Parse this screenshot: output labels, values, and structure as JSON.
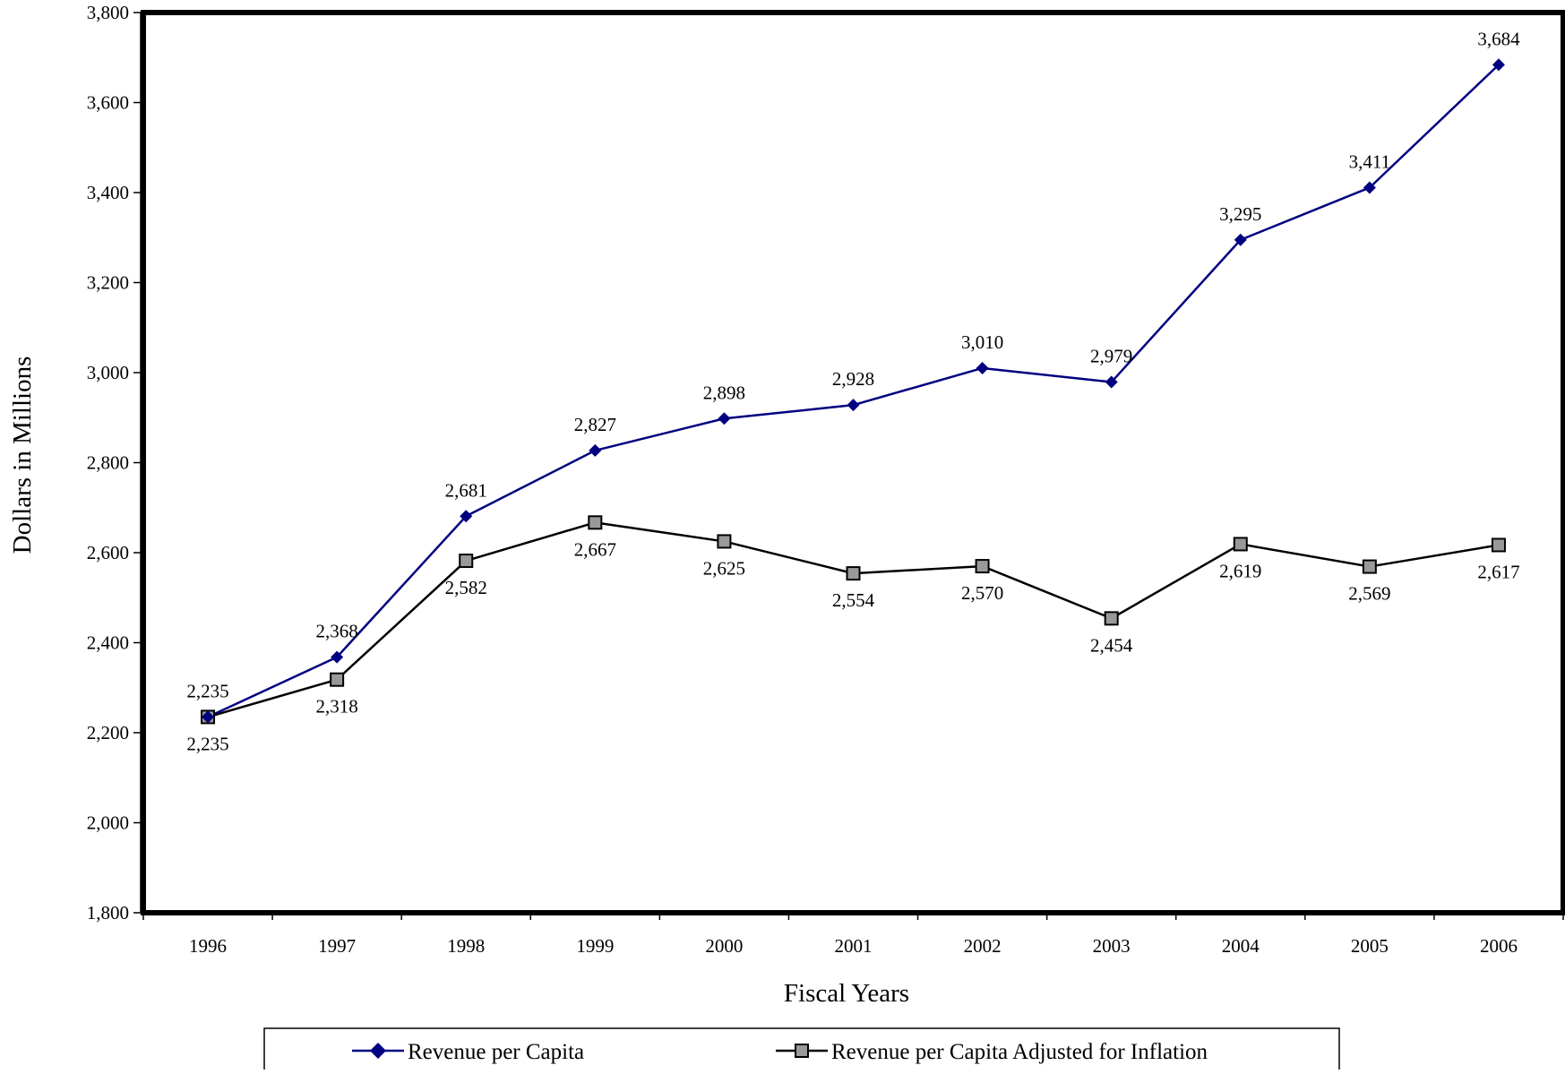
{
  "chart_data": {
    "type": "line",
    "title": "",
    "xlabel": "Fiscal Years",
    "ylabel": "Dollars in Millions",
    "categories": [
      "1996",
      "1997",
      "1998",
      "1999",
      "2000",
      "2001",
      "2002",
      "2003",
      "2004",
      "2005",
      "2006"
    ],
    "ylim": [
      1800,
      3800
    ],
    "yticks": [
      1800,
      2000,
      2200,
      2400,
      2600,
      2800,
      3000,
      3200,
      3400,
      3600,
      3800
    ],
    "grid": false,
    "legend_position": "bottom",
    "series": [
      {
        "name": "Revenue per Capita",
        "values": [
          2235,
          2368,
          2681,
          2827,
          2898,
          2928,
          3010,
          2979,
          3295,
          3411,
          3684
        ],
        "color": "#000080",
        "marker": "diamond",
        "marker_color": "#000080",
        "label_position": "above"
      },
      {
        "name": "Revenue per Capita Adjusted for Inflation",
        "values": [
          2235,
          2318,
          2582,
          2667,
          2625,
          2554,
          2570,
          2454,
          2619,
          2569,
          2617
        ],
        "color": "#000000",
        "marker": "square",
        "marker_color": "#999999",
        "label_position": "below"
      }
    ]
  }
}
